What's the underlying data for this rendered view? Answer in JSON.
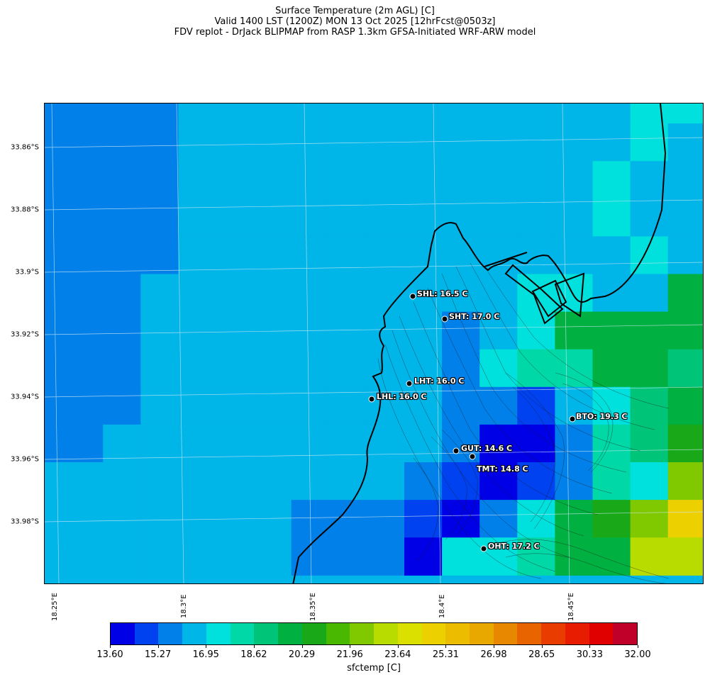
{
  "title": {
    "line1": "Surface Temperature (2m AGL) [C]",
    "line2": "Valid 1400 LST (1200Z) MON 13 Oct 2025 [12hrFcst@0503z]",
    "line3": "FDV replot - DrJack BLIPMAP from RASP 1.3km GFSA-Initiated WRF-ARW model"
  },
  "axes": {
    "lat_labels": [
      "33.86°S",
      "33.88°S",
      "33.9°S",
      "33.92°S",
      "33.94°S",
      "33.96°S",
      "33.98°S"
    ],
    "lon_labels": [
      "18.25°E",
      "18.3°E",
      "18.35°E",
      "18.4°E",
      "18.45°E"
    ]
  },
  "stations": [
    {
      "code": "SHL",
      "label": "SHL: 16.5 C",
      "value": 16.5
    },
    {
      "code": "SHT",
      "label": "SHT: 17.0 C",
      "value": 17.0
    },
    {
      "code": "LHT",
      "label": "LHT: 16.0 C",
      "value": 16.0
    },
    {
      "code": "LHL",
      "label": "LHL: 16.0 C",
      "value": 16.0
    },
    {
      "code": "BTO",
      "label": "BTO: 19.3 C",
      "value": 19.3
    },
    {
      "code": "GUT",
      "label": "GUT: 14.6 C",
      "value": 14.6
    },
    {
      "code": "TMT",
      "label": "TMT: 14.8 C",
      "value": 14.8
    },
    {
      "code": "OHT",
      "label": "OHT: 17.2 C",
      "value": 17.2
    }
  ],
  "colorbar": {
    "label": "sfctemp [C]",
    "tick_labels": [
      "13.60",
      "15.27",
      "16.95",
      "18.62",
      "20.29",
      "21.96",
      "23.64",
      "25.31",
      "26.98",
      "28.65",
      "30.33",
      "32.00"
    ],
    "colors": [
      "#0000e6",
      "#0042f0",
      "#0080e8",
      "#00b5e8",
      "#00e0dc",
      "#00d8a8",
      "#00c478",
      "#00b040",
      "#18a818",
      "#48b800",
      "#80c800",
      "#b8dc00",
      "#dce000",
      "#ecd000",
      "#ecbc00",
      "#e8a800",
      "#e88800",
      "#e86400",
      "#e83c00",
      "#e81c00",
      "#e00000",
      "#c00028"
    ]
  }
}
